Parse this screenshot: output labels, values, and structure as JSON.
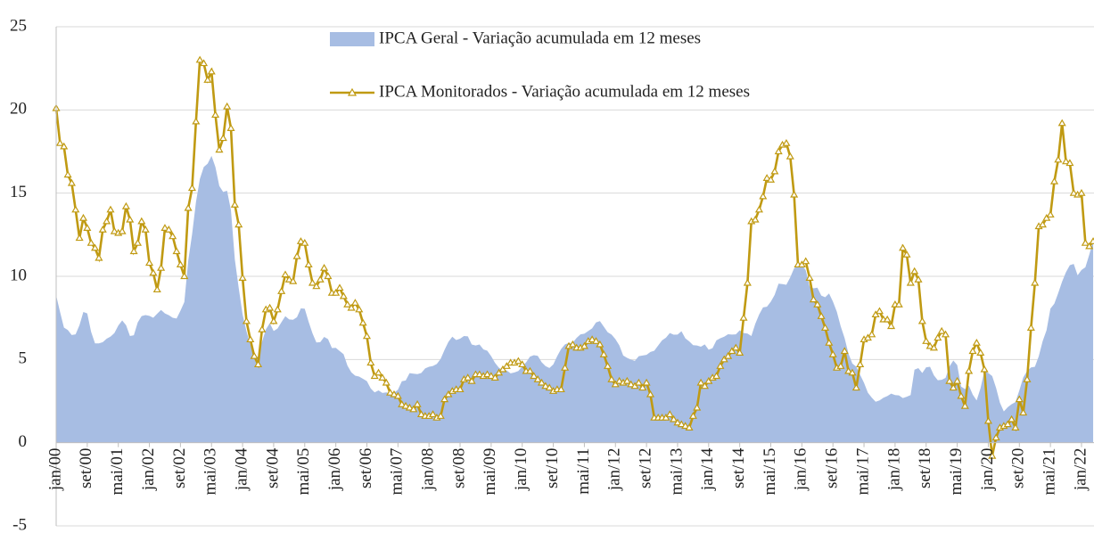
{
  "chart_data": {
    "type": "combo",
    "categories": [
      "jan/00",
      null,
      null,
      null,
      null,
      null,
      null,
      null,
      "set/00",
      null,
      null,
      null,
      null,
      null,
      null,
      null,
      "mai/01",
      null,
      null,
      null,
      null,
      null,
      null,
      null,
      "jan/02",
      null,
      null,
      null,
      null,
      null,
      null,
      null,
      "set/02",
      null,
      null,
      null,
      null,
      null,
      null,
      null,
      "mai/03",
      null,
      null,
      null,
      null,
      null,
      null,
      null,
      "jan/04",
      null,
      null,
      null,
      null,
      null,
      null,
      null,
      "set/04",
      null,
      null,
      null,
      null,
      null,
      null,
      null,
      "mai/05",
      null,
      null,
      null,
      null,
      null,
      null,
      null,
      "jan/06",
      null,
      null,
      null,
      null,
      null,
      null,
      null,
      "set/06",
      null,
      null,
      null,
      null,
      null,
      null,
      null,
      "mai/07",
      null,
      null,
      null,
      null,
      null,
      null,
      null,
      "jan/08",
      null,
      null,
      null,
      null,
      null,
      null,
      null,
      "set/08",
      null,
      null,
      null,
      null,
      null,
      null,
      null,
      "mai/09",
      null,
      null,
      null,
      null,
      null,
      null,
      null,
      "jan/10",
      null,
      null,
      null,
      null,
      null,
      null,
      null,
      "set/10",
      null,
      null,
      null,
      null,
      null,
      null,
      null,
      "mai/11",
      null,
      null,
      null,
      null,
      null,
      null,
      null,
      "jan/12",
      null,
      null,
      null,
      null,
      null,
      null,
      null,
      "set/12",
      null,
      null,
      null,
      null,
      null,
      null,
      null,
      "mai/13",
      null,
      null,
      null,
      null,
      null,
      null,
      null,
      "jan/14",
      null,
      null,
      null,
      null,
      null,
      null,
      null,
      "set/14",
      null,
      null,
      null,
      null,
      null,
      null,
      null,
      "mai/15",
      null,
      null,
      null,
      null,
      null,
      null,
      null,
      "jan/16",
      null,
      null,
      null,
      null,
      null,
      null,
      null,
      "set/16",
      null,
      null,
      null,
      null,
      null,
      null,
      null,
      "mai/17",
      null,
      null,
      null,
      null,
      null,
      null,
      null,
      "jan/18",
      null,
      null,
      null,
      null,
      null,
      null,
      null,
      "set/18",
      null,
      null,
      null,
      null,
      null,
      null,
      null,
      "mai/19",
      null,
      null,
      null,
      null,
      null,
      null,
      null,
      "jan/20",
      null,
      null,
      null,
      null,
      null,
      null,
      null,
      "set/20",
      null,
      null,
      null,
      null,
      null,
      null,
      null,
      "mai/21",
      null,
      null,
      null,
      null,
      null,
      null,
      null,
      "jan/22",
      null,
      null,
      null
    ],
    "series": [
      {
        "name": "IPCA Geral - Variação acumulada em 12 meses",
        "type": "area",
        "color": "#a7bde3",
        "values": [
          8.85,
          7.86,
          6.92,
          6.77,
          6.47,
          6.51,
          7.06,
          7.86,
          7.77,
          6.66,
          5.97,
          5.97,
          6.04,
          6.25,
          6.38,
          6.59,
          7.04,
          7.35,
          7.06,
          6.41,
          6.46,
          7.23,
          7.61,
          7.67,
          7.62,
          7.51,
          7.75,
          7.98,
          7.77,
          7.66,
          7.51,
          7.46,
          7.93,
          8.45,
          10.93,
          12.53,
          14.47,
          15.85,
          16.57,
          16.77,
          17.24,
          16.57,
          15.43,
          15.07,
          15.14,
          13.98,
          11.02,
          9.3,
          7.71,
          6.69,
          5.89,
          5.26,
          5.15,
          6.06,
          6.81,
          7.18,
          6.71,
          6.86,
          7.24,
          7.6,
          7.41,
          7.39,
          7.54,
          8.07,
          8.05,
          7.27,
          6.57,
          6.02,
          6.04,
          6.36,
          6.22,
          5.69,
          5.7,
          5.51,
          5.32,
          4.63,
          4.23,
          4.03,
          3.97,
          3.84,
          3.7,
          3.26,
          3.02,
          3.14,
          2.99,
          3.02,
          2.96,
          3.0,
          3.18,
          3.69,
          3.74,
          4.18,
          4.15,
          4.12,
          4.19,
          4.46,
          4.56,
          4.61,
          4.73,
          5.04,
          5.58,
          6.06,
          6.37,
          6.17,
          6.25,
          6.41,
          6.39,
          5.9,
          5.84,
          5.9,
          5.61,
          5.53,
          5.2,
          4.8,
          4.5,
          4.36,
          4.34,
          4.17,
          4.22,
          4.31,
          4.59,
          4.83,
          5.17,
          5.26,
          5.22,
          4.84,
          4.6,
          4.49,
          4.7,
          5.2,
          5.63,
          5.91,
          5.99,
          6.01,
          6.3,
          6.51,
          6.55,
          6.71,
          6.87,
          7.23,
          7.31,
          6.97,
          6.64,
          6.5,
          6.22,
          5.85,
          5.24,
          5.1,
          4.99,
          4.92,
          5.2,
          5.24,
          5.28,
          5.45,
          5.53,
          5.84,
          6.15,
          6.31,
          6.59,
          6.49,
          6.5,
          6.7,
          6.27,
          6.09,
          5.86,
          5.84,
          5.77,
          5.91,
          5.59,
          5.68,
          6.15,
          6.28,
          6.37,
          6.52,
          6.5,
          6.51,
          6.75,
          6.59,
          6.56,
          6.41,
          7.14,
          7.7,
          8.13,
          8.17,
          8.47,
          8.89,
          9.56,
          9.53,
          9.49,
          9.93,
          10.48,
          10.67,
          10.71,
          10.36,
          9.39,
          9.28,
          9.32,
          8.84,
          8.74,
          8.97,
          8.48,
          7.87,
          6.99,
          6.29,
          5.35,
          4.76,
          4.57,
          4.08,
          3.6,
          3.0,
          2.71,
          2.46,
          2.54,
          2.7,
          2.8,
          2.95,
          2.86,
          2.84,
          2.68,
          2.76,
          2.86,
          4.39,
          4.48,
          4.19,
          4.53,
          4.56,
          4.05,
          3.75,
          3.78,
          3.89,
          4.58,
          4.94,
          4.66,
          3.37,
          3.22,
          3.43,
          2.89,
          2.54,
          3.27,
          4.31,
          4.19,
          4.01,
          3.3,
          2.4,
          1.88,
          2.13,
          2.31,
          2.44,
          3.14,
          3.92,
          4.31,
          4.52,
          4.56,
          5.2,
          6.1,
          6.76,
          8.06,
          8.35,
          8.99,
          9.68,
          10.25,
          10.67,
          10.74,
          10.06,
          10.38,
          10.54,
          11.3,
          12.13
        ]
      },
      {
        "name": "IPCA Monitorados - Variação acumulada em 12 meses",
        "type": "line",
        "color": "#c09a12",
        "values": [
          20.1,
          18.0,
          17.8,
          16.1,
          15.6,
          14.0,
          12.3,
          13.5,
          12.9,
          12.0,
          11.7,
          11.1,
          12.8,
          13.3,
          14.0,
          12.7,
          12.6,
          12.7,
          14.2,
          13.4,
          11.5,
          12.0,
          13.3,
          12.8,
          10.8,
          10.2,
          9.2,
          10.5,
          12.9,
          12.8,
          12.4,
          11.5,
          10.7,
          10.0,
          14.1,
          15.3,
          19.3,
          23.0,
          22.8,
          21.8,
          22.3,
          19.7,
          17.6,
          18.3,
          20.2,
          18.9,
          14.3,
          13.1,
          9.9,
          7.3,
          6.2,
          5.2,
          4.7,
          6.8,
          8.0,
          8.1,
          7.3,
          8.0,
          9.1,
          10.1,
          9.8,
          9.7,
          11.2,
          12.1,
          12.0,
          10.7,
          9.6,
          9.4,
          9.8,
          10.5,
          10.0,
          9.0,
          9.0,
          9.3,
          8.8,
          8.3,
          8.1,
          8.4,
          8.0,
          7.2,
          6.4,
          4.8,
          4.0,
          4.2,
          3.9,
          3.6,
          3.0,
          2.9,
          2.8,
          2.3,
          2.2,
          2.1,
          2.0,
          2.3,
          1.7,
          1.6,
          1.6,
          1.7,
          1.5,
          1.6,
          2.6,
          2.9,
          3.1,
          3.2,
          3.2,
          3.8,
          3.9,
          3.7,
          4.1,
          4.1,
          4.0,
          4.1,
          4.0,
          3.9,
          4.2,
          4.4,
          4.6,
          4.8,
          4.8,
          4.9,
          4.7,
          4.3,
          4.3,
          4.0,
          3.8,
          3.6,
          3.4,
          3.3,
          3.1,
          3.2,
          3.2,
          4.5,
          5.8,
          5.9,
          5.7,
          5.7,
          5.8,
          6.1,
          6.2,
          6.1,
          5.9,
          5.3,
          4.6,
          3.8,
          3.5,
          3.7,
          3.6,
          3.7,
          3.5,
          3.4,
          3.6,
          3.3,
          3.6,
          2.9,
          1.5,
          1.5,
          1.5,
          1.5,
          1.7,
          1.4,
          1.2,
          1.1,
          1.0,
          0.9,
          1.6,
          2.1,
          3.6,
          3.4,
          3.7,
          3.9,
          4.0,
          4.6,
          5.0,
          5.2,
          5.5,
          5.7,
          5.4,
          7.5,
          9.6,
          13.3,
          13.4,
          14.0,
          14.8,
          15.9,
          15.8,
          16.3,
          17.5,
          17.9,
          18.0,
          17.2,
          14.9,
          10.7,
          10.7,
          10.9,
          9.9,
          8.6,
          8.3,
          7.6,
          6.9,
          6.0,
          5.3,
          4.5,
          4.6,
          5.5,
          4.3,
          4.2,
          3.3,
          4.7,
          6.2,
          6.3,
          6.5,
          7.7,
          7.9,
          7.4,
          7.4,
          7.0,
          8.3,
          8.3,
          11.7,
          11.3,
          9.6,
          10.3,
          9.8,
          7.3,
          6.1,
          5.8,
          5.7,
          6.3,
          6.7,
          6.5,
          3.7,
          3.3,
          3.7,
          2.8,
          2.2,
          4.3,
          5.5,
          6.0,
          5.4,
          4.4,
          1.3,
          -0.8,
          0.3,
          0.9,
          1.0,
          1.1,
          1.4,
          0.9,
          2.6,
          1.8,
          3.8,
          6.9,
          9.6,
          13.0,
          13.1,
          13.5,
          13.7,
          15.7,
          17.0,
          19.2,
          16.9,
          16.8,
          15.0,
          14.9,
          15.0,
          12.0,
          11.8,
          12.1
        ]
      }
    ],
    "ylim": [
      -5,
      25
    ],
    "yticks": [
      -5,
      0,
      5,
      10,
      15,
      20,
      25
    ],
    "grid": true
  }
}
